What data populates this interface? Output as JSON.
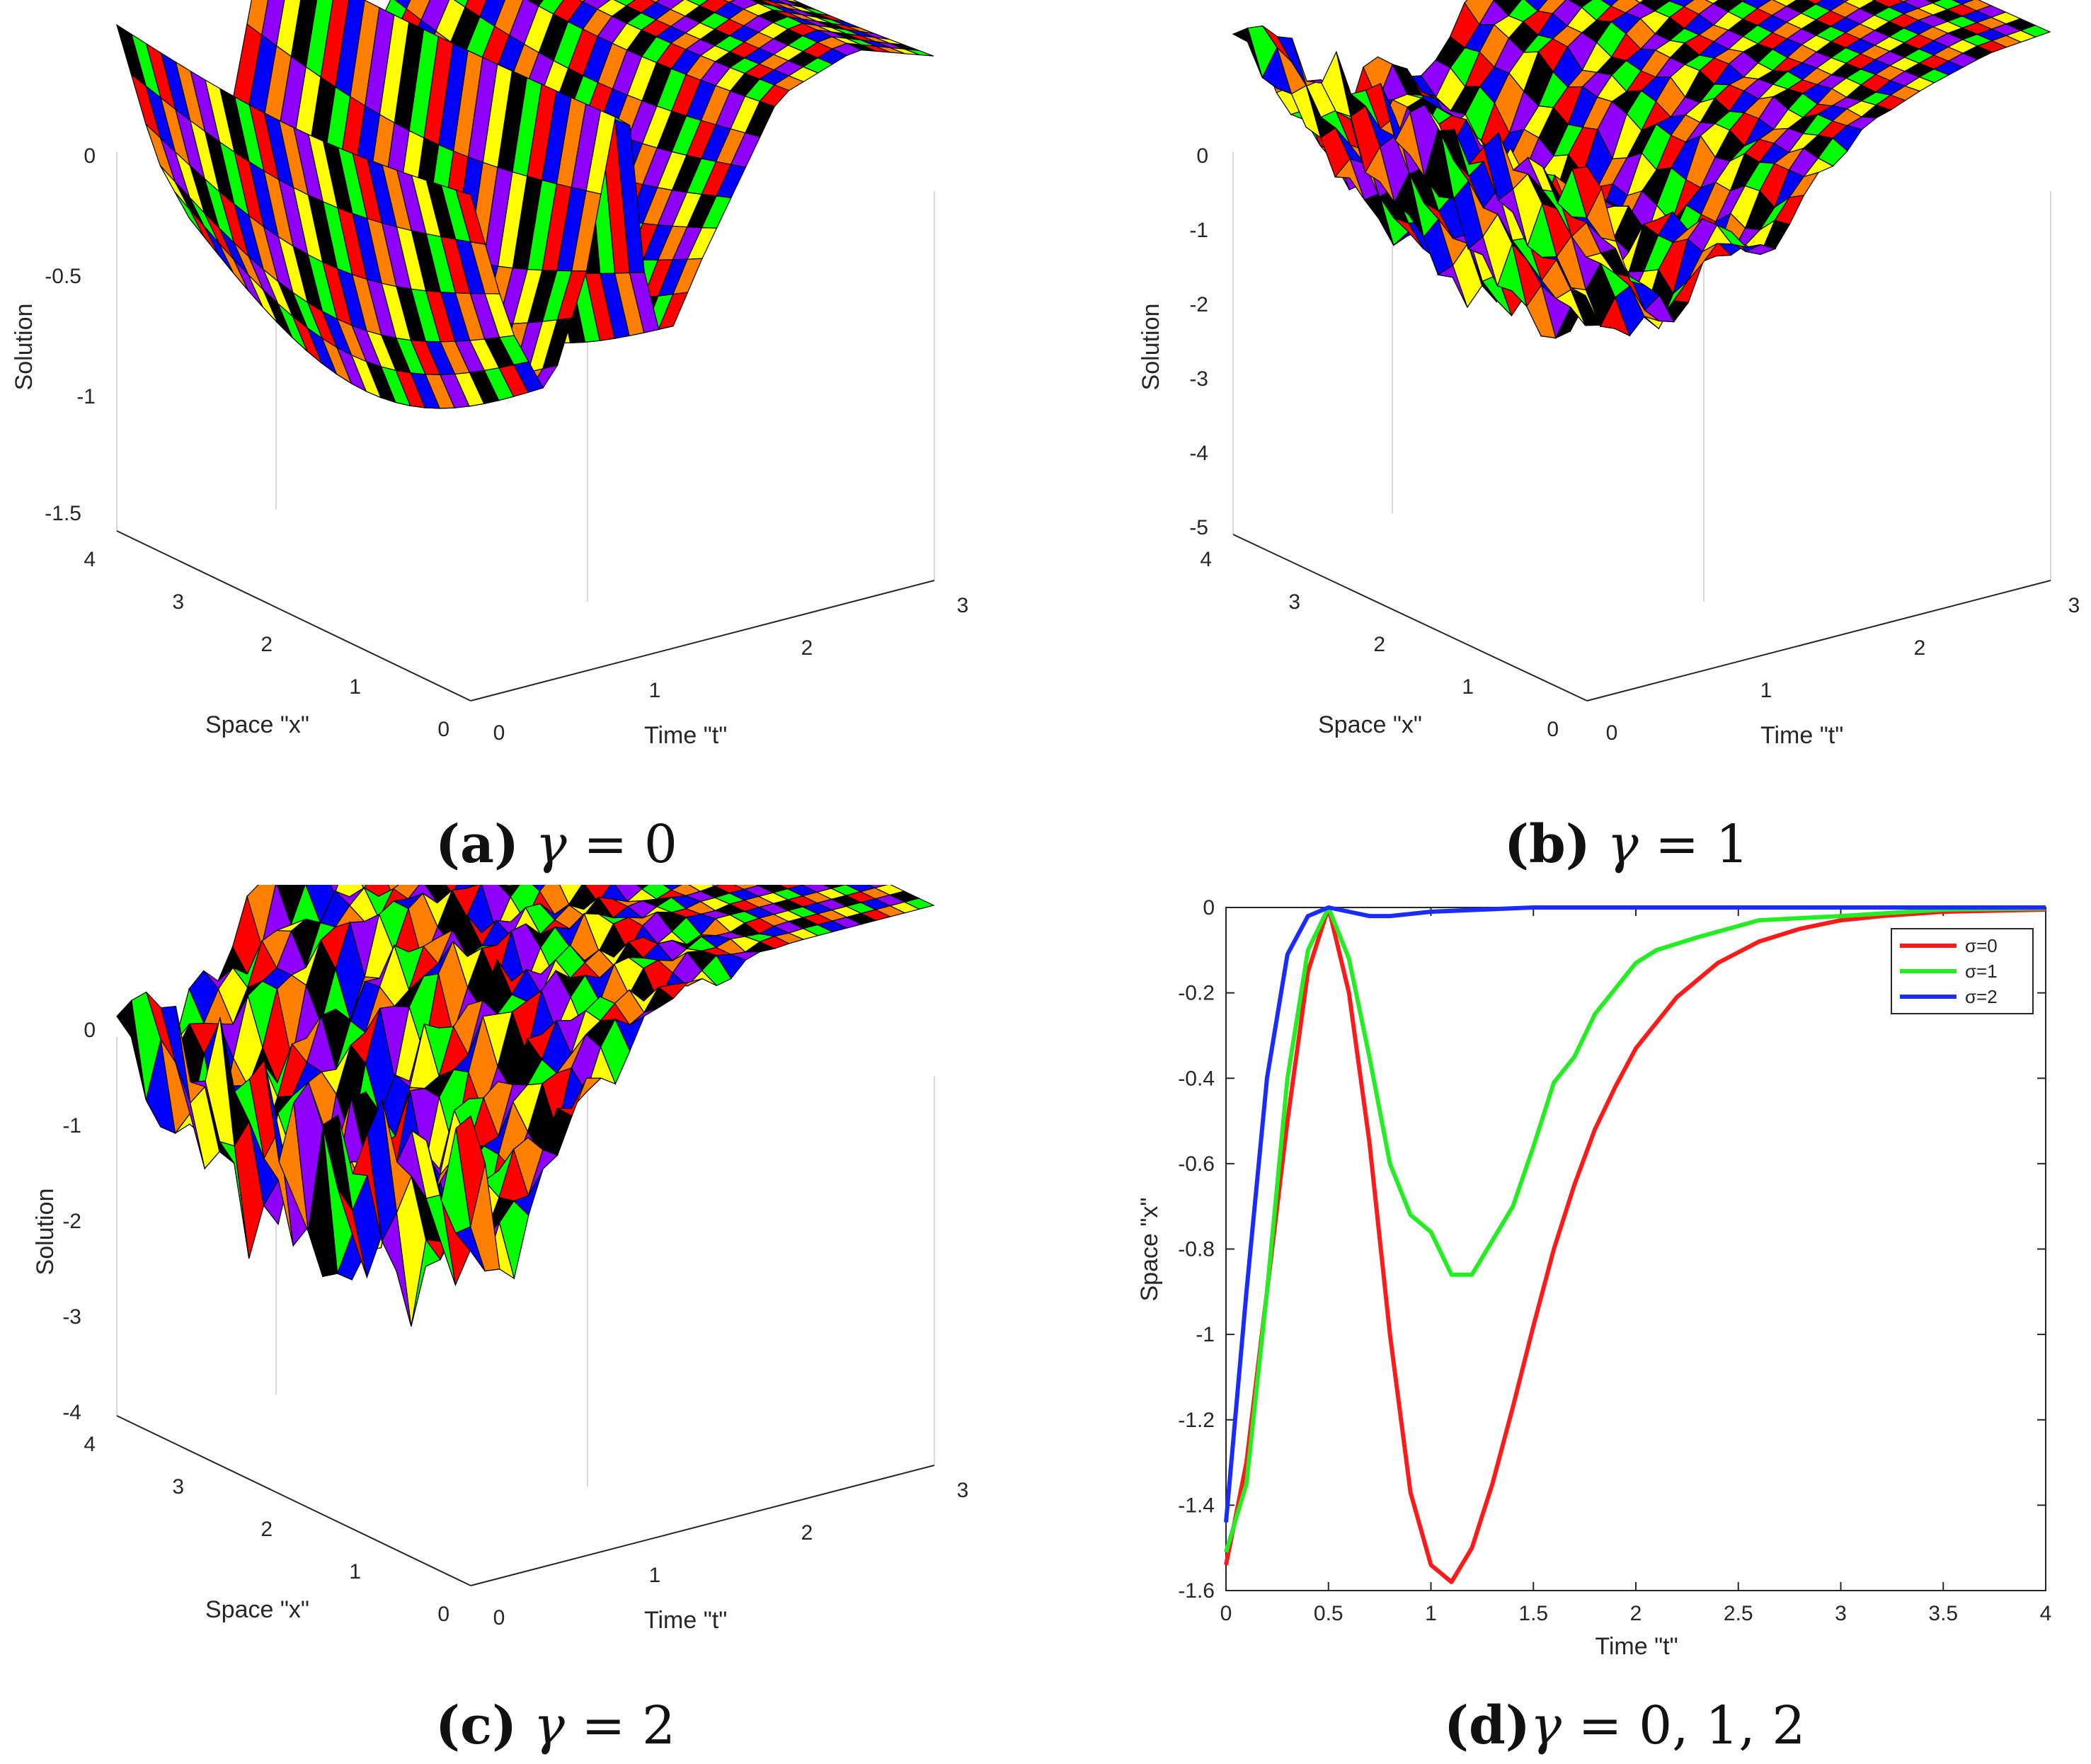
{
  "colors": {
    "surface_palette": [
      "#ff0000",
      "#ff7f00",
      "#ffff00",
      "#00ff00",
      "#0000ff",
      "#8f00ff",
      "#000000"
    ],
    "sigma0": "#ff1a1a",
    "sigma1": "#22ee22",
    "sigma2": "#1a2bff",
    "grid": "#d9d9d9",
    "axis": "#262626"
  },
  "chart_data": [
    {
      "id": "a",
      "type": "surface3d",
      "caption": {
        "letter": "(a)",
        "symbol": "γ",
        "op": "=",
        "value": "0"
      },
      "zlabel": "Solution",
      "xlabel": "Space \"x\"",
      "ylabel": "Time \"t\"",
      "zticks": [
        "0",
        "-0.5",
        "-1",
        "-1.5"
      ],
      "zlim": [
        -1.6,
        0
      ],
      "xticks": [
        "0",
        "1",
        "2",
        "3",
        "4"
      ],
      "tticks": [
        "0",
        "1",
        "2",
        "3"
      ],
      "profile_t": [
        0,
        0.25,
        0.5,
        0.75,
        1.0,
        1.1,
        1.25,
        1.5,
        2.0,
        2.5,
        3.0
      ],
      "profile_u": [
        -0.3,
        -1.1,
        -1.55,
        -0.9,
        0.2,
        -0.9,
        -1.45,
        -1.0,
        -0.2,
        -0.05,
        -0.2
      ],
      "roughness": 0.0
    },
    {
      "id": "b",
      "type": "surface3d",
      "caption": {
        "letter": "(b)",
        "symbol": "γ",
        "op": "=",
        "value": "1"
      },
      "zlabel": "Solution",
      "xlabel": "Space \"x\"",
      "ylabel": "Time \"t\"",
      "zticks": [
        "0",
        "-1",
        "-2",
        "-3",
        "-4",
        "-5"
      ],
      "zlim": [
        -5,
        0
      ],
      "xticks": [
        "0",
        "1",
        "2",
        "3",
        "4"
      ],
      "tticks": [
        "0",
        "1",
        "2",
        "3"
      ],
      "profile_t": [
        0,
        0.3,
        0.6,
        0.9,
        1.2,
        1.5,
        1.8,
        2.2,
        2.6,
        3.0
      ],
      "profile_u": [
        -0.6,
        -2.2,
        -3.6,
        -2.0,
        -2.8,
        -1.6,
        -1.0,
        -0.6,
        -0.3,
        -0.2
      ],
      "roughness": 0.8
    },
    {
      "id": "c",
      "type": "surface3d",
      "caption": {
        "letter": "(c)",
        "symbol": "γ",
        "op": "=",
        "value": "2"
      },
      "zlabel": "Solution",
      "xlabel": "Space \"x\"",
      "ylabel": "Time \"t\"",
      "zticks": [
        "0",
        "-1",
        "-2",
        "-3",
        "-4"
      ],
      "zlim": [
        -4,
        0
      ],
      "xticks": [
        "0",
        "1",
        "2",
        "3",
        "4"
      ],
      "tticks": [
        "0",
        "1",
        "2",
        "3"
      ],
      "profile_t": [
        0,
        0.2,
        0.4,
        0.6,
        0.8,
        1.0,
        1.3,
        1.6,
        2.0,
        3.0
      ],
      "profile_u": [
        -1.5,
        -3.2,
        -2.4,
        -1.8,
        -1.2,
        -0.6,
        -0.3,
        -0.1,
        0,
        0
      ],
      "roughness": 1.2
    },
    {
      "id": "d",
      "type": "line",
      "caption": {
        "letter": "(d)",
        "symbol": "γ",
        "op": "=",
        "value": "0, 1, 2"
      },
      "xlabel": "Time \"t\"",
      "ylabel": "Space \"x\"",
      "xlim": [
        0,
        4
      ],
      "ylim": [
        -1.6,
        0
      ],
      "xticks": [
        "0",
        "0.5",
        "1",
        "1.5",
        "2",
        "2.5",
        "3",
        "3.5",
        "4"
      ],
      "yticks": [
        "0",
        "-0.2",
        "-0.4",
        "-0.6",
        "-0.8",
        "-1",
        "-1.2",
        "-1.4",
        "-1.6"
      ],
      "legend_position": "top-right",
      "series": [
        {
          "name": "σ=0",
          "color_key": "sigma0",
          "x": [
            0,
            0.1,
            0.2,
            0.3,
            0.4,
            0.5,
            0.6,
            0.7,
            0.8,
            0.9,
            1.0,
            1.1,
            1.2,
            1.3,
            1.4,
            1.5,
            1.6,
            1.7,
            1.8,
            1.9,
            2.0,
            2.2,
            2.4,
            2.6,
            2.8,
            3.0,
            3.2,
            3.5,
            4.0
          ],
          "y": [
            -1.54,
            -1.3,
            -0.9,
            -0.5,
            -0.15,
            0.0,
            -0.2,
            -0.55,
            -1.0,
            -1.37,
            -1.54,
            -1.58,
            -1.5,
            -1.35,
            -1.17,
            -0.98,
            -0.8,
            -0.65,
            -0.52,
            -0.42,
            -0.33,
            -0.21,
            -0.13,
            -0.08,
            -0.05,
            -0.03,
            -0.02,
            -0.01,
            -0.005
          ]
        },
        {
          "name": "σ=1",
          "color_key": "sigma1",
          "x": [
            0,
            0.1,
            0.2,
            0.3,
            0.4,
            0.5,
            0.6,
            0.7,
            0.8,
            0.9,
            1.0,
            1.1,
            1.2,
            1.3,
            1.4,
            1.5,
            1.6,
            1.7,
            1.8,
            1.9,
            2.0,
            2.1,
            2.3,
            2.6,
            3.0,
            3.5,
            4.0
          ],
          "y": [
            -1.51,
            -1.35,
            -0.9,
            -0.4,
            -0.1,
            0.0,
            -0.12,
            -0.35,
            -0.6,
            -0.72,
            -0.76,
            -0.86,
            -0.86,
            -0.78,
            -0.7,
            -0.56,
            -0.41,
            -0.35,
            -0.25,
            -0.19,
            -0.13,
            -0.1,
            -0.07,
            -0.03,
            -0.02,
            -0.005,
            -0.002
          ]
        },
        {
          "name": "σ=2",
          "color_key": "sigma2",
          "x": [
            0,
            0.1,
            0.2,
            0.3,
            0.4,
            0.5,
            0.6,
            0.7,
            0.8,
            1.0,
            1.5,
            2.0,
            3.0,
            4.0
          ],
          "y": [
            -1.44,
            -0.9,
            -0.4,
            -0.11,
            -0.02,
            0.0,
            -0.01,
            -0.02,
            -0.02,
            -0.01,
            0.0,
            0.0,
            0.0,
            0.0
          ]
        }
      ]
    }
  ]
}
